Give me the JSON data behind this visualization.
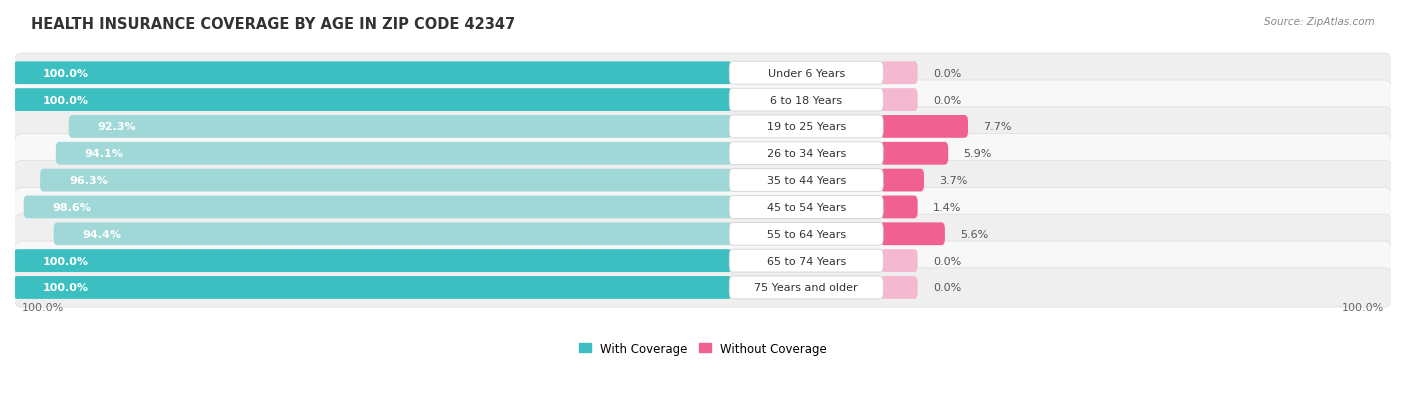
{
  "title": "HEALTH INSURANCE COVERAGE BY AGE IN ZIP CODE 42347",
  "source": "Source: ZipAtlas.com",
  "categories": [
    "Under 6 Years",
    "6 to 18 Years",
    "19 to 25 Years",
    "26 to 34 Years",
    "35 to 44 Years",
    "45 to 54 Years",
    "55 to 64 Years",
    "65 to 74 Years",
    "75 Years and older"
  ],
  "with_coverage": [
    100.0,
    100.0,
    92.3,
    94.1,
    96.3,
    98.6,
    94.4,
    100.0,
    100.0
  ],
  "without_coverage": [
    0.0,
    0.0,
    7.7,
    5.9,
    3.7,
    1.4,
    5.6,
    0.0,
    0.0
  ],
  "teal_dark": "#3BBFC0",
  "teal_light": "#A0D8D8",
  "pink_dark": "#F06090",
  "pink_light": "#F4B8D0",
  "row_odd": "#F5F5F5",
  "row_even": "#FAFAFA",
  "label_box_color": "#FFFFFF",
  "title_fontsize": 10.5,
  "bar_label_fontsize": 8.0,
  "pct_fontsize": 8.0,
  "legend_fontsize": 8.5,
  "source_fontsize": 7.5,
  "tick_fontsize": 8.0
}
